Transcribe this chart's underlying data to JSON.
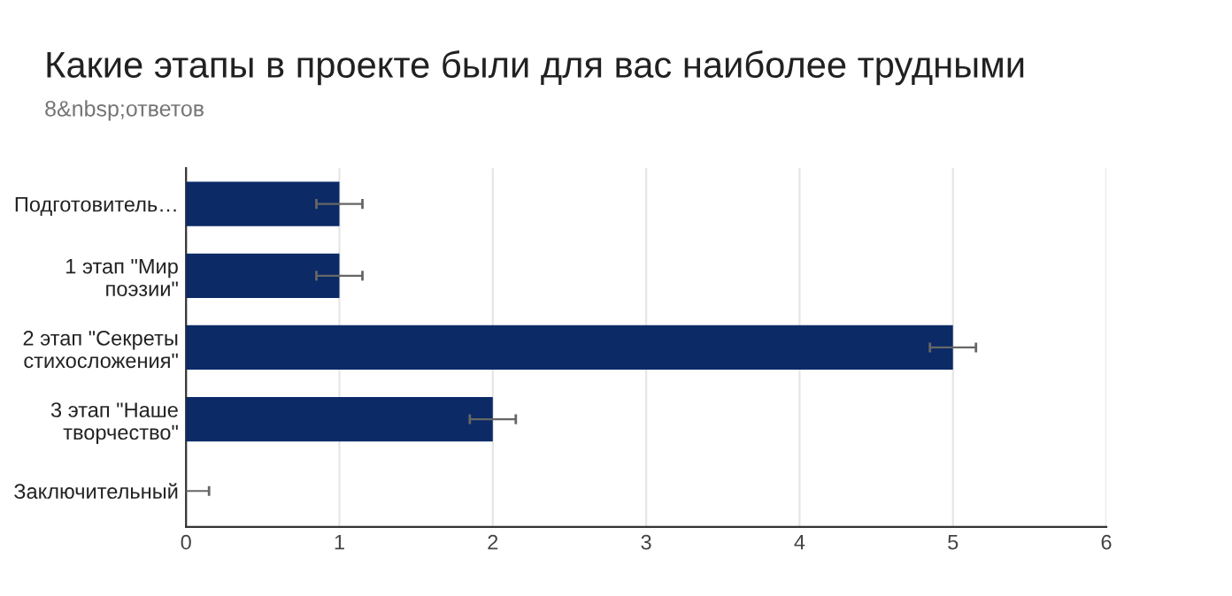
{
  "chart_data": {
    "type": "bar",
    "orientation": "horizontal",
    "title": "Какие этапы в проекте были для вас наиболее трудными",
    "subtitle": "8&nbsp;ответов",
    "categories": [
      "Подготовитель…",
      "1 этап \"Мир\nпоэзии\"",
      "2 этап \"Секреты\nстихосложения\"",
      "3 этап \"Наше\nтворчество\"",
      "Заключительный"
    ],
    "values": [
      1,
      1,
      5,
      2,
      0
    ],
    "errors": [
      0.15,
      0.15,
      0.15,
      0.15,
      0.15
    ],
    "color": "#0b2a66",
    "xlim": [
      0,
      6
    ],
    "xticks": [
      0,
      1,
      2,
      3,
      4,
      5,
      6
    ],
    "grid": "x"
  }
}
